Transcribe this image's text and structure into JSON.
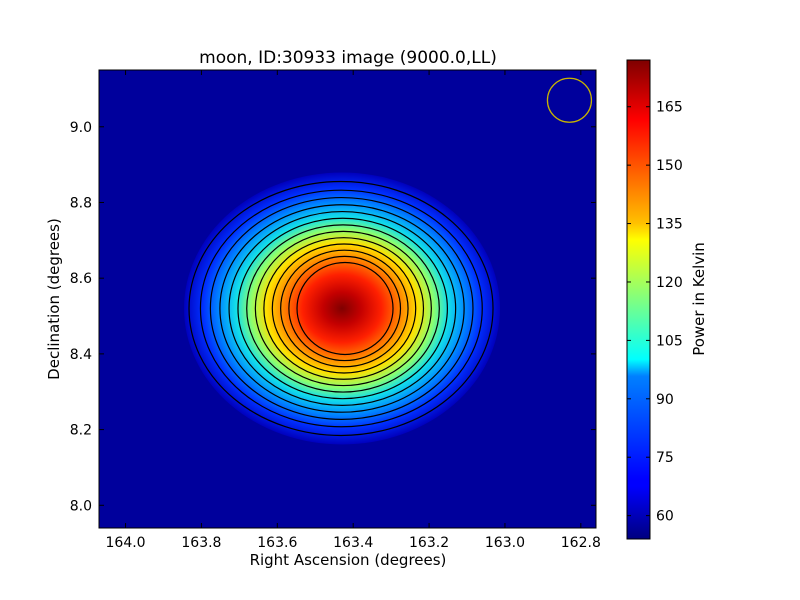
{
  "chart_data": {
    "type": "heatmap",
    "title": "moon, ID:30933 image (9000.0,LL)",
    "xlabel": "Right Ascension (degrees)",
    "ylabel": "Declination (degrees)",
    "colorbar_label": "Power in Kelvin",
    "colormap": "jet",
    "xlim": [
      164.07,
      162.76
    ],
    "ylim": [
      7.94,
      9.15
    ],
    "x_ticks": [
      164.0,
      163.8,
      163.6,
      163.4,
      163.2,
      163.0,
      162.8
    ],
    "x_tick_labels": [
      "164.0",
      "163.8",
      "163.6",
      "163.4",
      "163.2",
      "163.0",
      "162.8"
    ],
    "y_ticks": [
      8.0,
      8.2,
      8.4,
      8.6,
      8.8,
      9.0
    ],
    "y_tick_labels": [
      "8.0",
      "8.2",
      "8.4",
      "8.6",
      "8.8",
      "9.0"
    ],
    "color_range": [
      54,
      177
    ],
    "colorbar_ticks": [
      60,
      75,
      90,
      105,
      120,
      135,
      150,
      165
    ],
    "colorbar_tick_labels": [
      "60",
      "75",
      "90",
      "105",
      "120",
      "135",
      "150",
      "165"
    ],
    "peak": {
      "ra": 163.44,
      "dec": 8.52,
      "value": 177
    },
    "background_value": 56,
    "contour_levels": [
      62,
      70,
      78,
      86,
      94,
      102,
      110,
      118,
      126,
      134,
      142,
      150,
      158
    ],
    "beam_marker": {
      "ra": 162.83,
      "dec": 9.07,
      "color": "#c8b400"
    }
  }
}
